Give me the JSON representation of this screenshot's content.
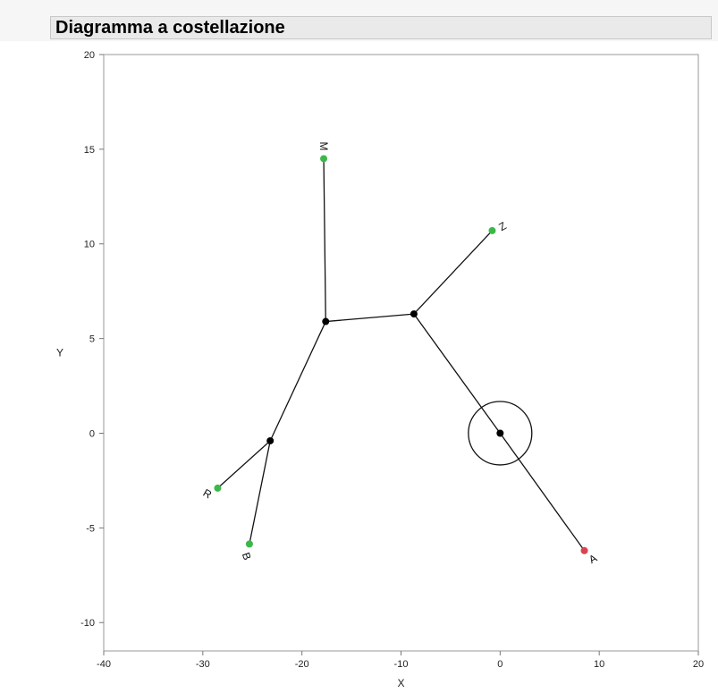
{
  "title": "Diagramma a costellazione",
  "chart_data": {
    "type": "scatter",
    "title": "Diagramma a costellazione",
    "xlabel": "X",
    "ylabel": "Y",
    "xlim": [
      -40,
      20
    ],
    "ylim": [
      -11.5,
      20
    ],
    "xticks": [
      -40,
      -30,
      -20,
      -10,
      0,
      10,
      20
    ],
    "yticks": [
      -10,
      -5,
      0,
      5,
      10,
      15,
      20
    ],
    "grid": false,
    "leaves": [
      {
        "label": "M",
        "x": -17.8,
        "y": 14.5,
        "color": "#3cb84a"
      },
      {
        "label": "Z",
        "x": -0.8,
        "y": 10.7,
        "color": "#3cb84a"
      },
      {
        "label": "R",
        "x": -28.5,
        "y": -2.9,
        "color": "#3cb84a"
      },
      {
        "label": "B",
        "x": -25.3,
        "y": -5.85,
        "color": "#3cb84a"
      },
      {
        "label": "A",
        "x": 8.5,
        "y": -6.2,
        "color": "#d9434f"
      }
    ],
    "nodes": [
      {
        "x": -17.6,
        "y": 5.9
      },
      {
        "x": -8.7,
        "y": 6.3
      },
      {
        "x": -23.2,
        "y": -0.4
      },
      {
        "x": 0.0,
        "y": 0.0
      }
    ],
    "edges": [
      [
        -17.8,
        14.5,
        -17.6,
        5.9
      ],
      [
        -17.6,
        5.9,
        -8.7,
        6.3
      ],
      [
        -8.7,
        6.3,
        -0.8,
        10.7
      ],
      [
        -17.6,
        5.9,
        -23.2,
        -0.4
      ],
      [
        -23.2,
        -0.4,
        -28.5,
        -2.9
      ],
      [
        -23.2,
        -0.4,
        -25.3,
        -5.85
      ],
      [
        -8.7,
        6.3,
        0.0,
        0.0
      ],
      [
        0.0,
        0.0,
        8.5,
        -6.2
      ]
    ],
    "root_marker": {
      "x": 0.0,
      "y": 0.0,
      "radius": 3.2
    }
  }
}
